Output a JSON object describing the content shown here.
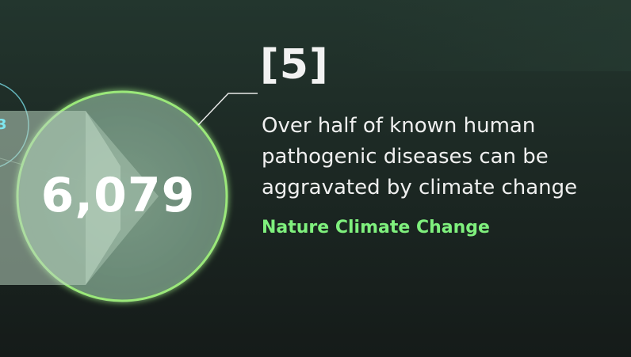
{
  "reference": {
    "label": "[5]"
  },
  "statistic": {
    "value": "6,079",
    "previous_value_fragment": "3",
    "description": "Over half of known human pathogenic diseases can be aggravated by climate change",
    "source": "Nature Climate Change"
  },
  "colors": {
    "accent_green": "#7ff07d",
    "circle_outline": "#9be87a",
    "previous_circle": "#7ee6ef",
    "background_top": "#23362e",
    "background_bottom": "#151b19"
  }
}
